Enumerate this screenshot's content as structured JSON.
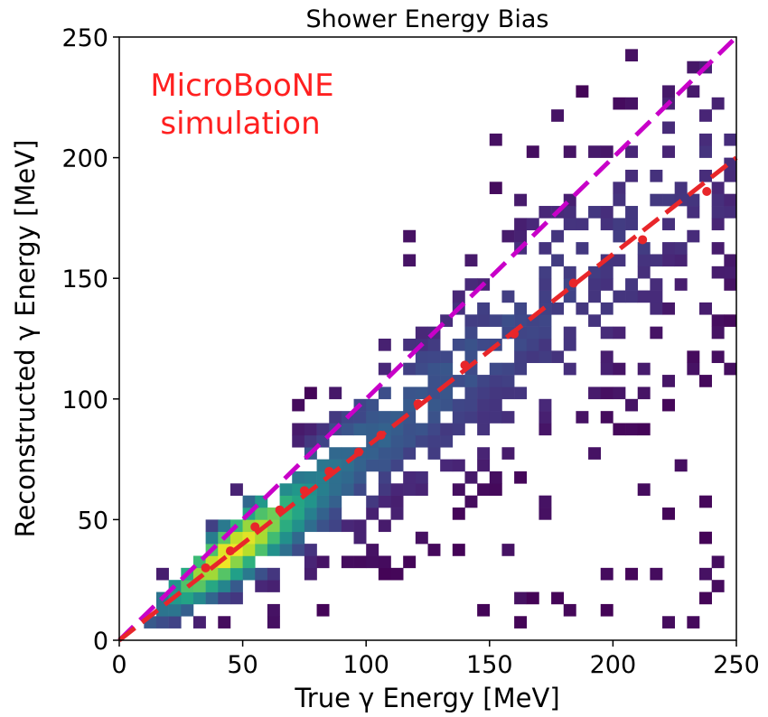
{
  "chart_data": {
    "type": "heatmap",
    "title": "Shower Energy Bias",
    "xlabel": "True γ Energy [MeV]",
    "ylabel": "Reconstructed γ Energy [MeV]",
    "xlim": [
      0,
      250
    ],
    "ylim": [
      0,
      250
    ],
    "xticks": [
      "0",
      "50",
      "100",
      "150",
      "200",
      "250"
    ],
    "yticks": [
      "0",
      "50",
      "100",
      "150",
      "200",
      "250"
    ],
    "grid": false,
    "colormap": "viridis",
    "bin_width_mev": 5,
    "annotation": {
      "lines": [
        "MicroBooNE",
        "simulation"
      ],
      "color": "#ff2020"
    },
    "density_model": {
      "description": "2D histogram of reconstructed vs true photon shower energy; dense band along y ≈ 0.8x",
      "peak_x": 45,
      "peak_y": 42
    },
    "series": [
      {
        "type": "line",
        "style": "dashed",
        "color": "#c800c8",
        "x": [
          0,
          250
        ],
        "y": [
          0,
          250
        ]
      },
      {
        "type": "line",
        "style": "dashed",
        "color": "#e8262a",
        "x": [
          0,
          250
        ],
        "y": [
          0,
          200
        ]
      },
      {
        "type": "scatter",
        "color": "#e8262a",
        "x": [
          35,
          45,
          55,
          65,
          75,
          85,
          97,
          106,
          121,
          140,
          160,
          184,
          212,
          238
        ],
        "y": [
          30,
          37,
          47,
          54,
          62,
          70,
          78,
          85,
          98,
          114,
          127,
          148,
          166,
          186
        ]
      }
    ]
  }
}
